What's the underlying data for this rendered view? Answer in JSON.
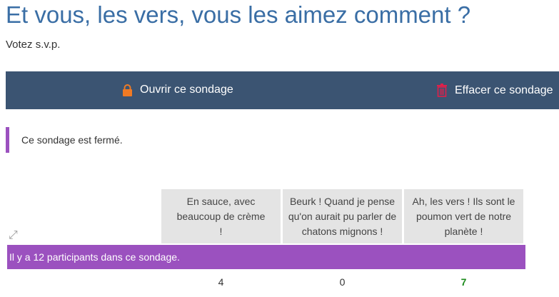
{
  "title": "Et vous, les vers, vous les aimez comment ?",
  "subtitle": "Votez s.v.p.",
  "toolbar": {
    "open_label": "Ouvrir ce sondage",
    "open_icon": "lock-icon",
    "open_icon_color": "#f07a24",
    "delete_label": "Effacer ce sondage",
    "delete_icon": "trash-icon",
    "delete_icon_color": "#e0204a"
  },
  "notice": "Ce sondage est fermé.",
  "options": [
    {
      "label": "En sauce, avec beaucoup de crème !",
      "count": "4"
    },
    {
      "label": "Beurk ! Quand je pense qu'on aurait pu parler de chatons mignons !",
      "count": "0"
    },
    {
      "label": "Ah, les vers ! Ils sont le poumon vert de notre planète !",
      "count": "7"
    }
  ],
  "participants": "Il y a 12 participants dans ce sondage.",
  "colors": {
    "accent": "#9b51bf",
    "toolbar": "#3b5472",
    "winner": "#1a8a1a"
  }
}
